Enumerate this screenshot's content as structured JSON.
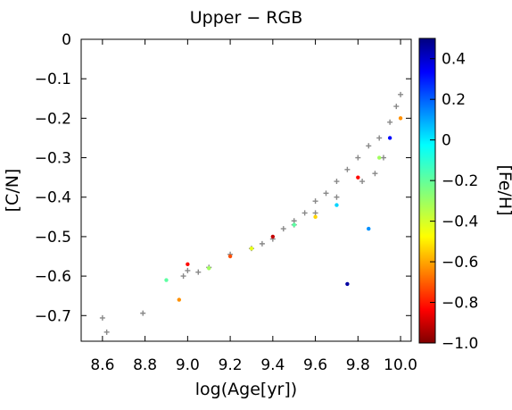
{
  "chart_data": {
    "type": "scatter",
    "title": "Upper − RGB",
    "xlabel": "log(Age[yr])",
    "ylabel": "[C/N]",
    "xlim": [
      8.5,
      10.05
    ],
    "ylim": [
      -0.765,
      0.0
    ],
    "xticks": [
      "8.6",
      "8.8",
      "9.0",
      "9.2",
      "9.4",
      "9.6",
      "9.8",
      "10.0"
    ],
    "yticks": [
      "0",
      "−0.1",
      "−0.2",
      "−0.3",
      "−0.4",
      "−0.5",
      "−0.6",
      "−0.7"
    ],
    "grid": false,
    "colorbar": {
      "label": "[Fe/H]",
      "range": [
        -1.0,
        0.5
      ],
      "ticks": [
        "0.4",
        "0.2",
        "0",
        "−0.2",
        "−0.4",
        "−0.6",
        "−0.8",
        "−1.0"
      ],
      "colormap": "jet"
    },
    "series": [
      {
        "marker": "plus",
        "color": "#888888",
        "points": [
          [
            8.6,
            -0.706
          ],
          [
            8.62,
            -0.742
          ],
          [
            8.79,
            -0.694
          ],
          [
            8.98,
            -0.6
          ],
          [
            9.0,
            -0.586
          ],
          [
            9.05,
            -0.59
          ],
          [
            9.1,
            -0.578
          ],
          [
            9.2,
            -0.545
          ],
          [
            9.3,
            -0.53
          ],
          [
            9.35,
            -0.518
          ],
          [
            9.4,
            -0.506
          ],
          [
            9.45,
            -0.48
          ],
          [
            9.5,
            -0.46
          ],
          [
            9.55,
            -0.44
          ],
          [
            9.6,
            -0.41
          ],
          [
            9.65,
            -0.39
          ],
          [
            9.7,
            -0.36
          ],
          [
            9.75,
            -0.33
          ],
          [
            9.8,
            -0.3
          ],
          [
            9.85,
            -0.27
          ],
          [
            9.9,
            -0.25
          ],
          [
            9.95,
            -0.21
          ],
          [
            9.98,
            -0.17
          ],
          [
            10.0,
            -0.14
          ],
          [
            9.92,
            -0.3
          ],
          [
            9.88,
            -0.34
          ],
          [
            9.82,
            -0.36
          ],
          [
            9.7,
            -0.4
          ],
          [
            9.6,
            -0.44
          ],
          [
            9.5,
            -0.47
          ]
        ]
      },
      {
        "marker": "dot",
        "name_hint": "colored by [Fe/H]",
        "points": [
          [
            8.9,
            -0.61,
            -0.3
          ],
          [
            8.96,
            -0.66,
            0.1
          ],
          [
            9.0,
            -0.57,
            0.3
          ],
          [
            9.1,
            -0.58,
            -0.2
          ],
          [
            9.2,
            -0.55,
            0.2
          ],
          [
            9.3,
            -0.53,
            -0.1
          ],
          [
            9.4,
            -0.5,
            0.4
          ],
          [
            9.5,
            -0.47,
            -0.3
          ],
          [
            9.6,
            -0.45,
            0.0
          ],
          [
            9.7,
            -0.42,
            -0.5
          ],
          [
            9.75,
            -0.62,
            -0.95
          ],
          [
            9.8,
            -0.35,
            0.3
          ],
          [
            9.85,
            -0.48,
            -0.6
          ],
          [
            9.9,
            -0.3,
            -0.2
          ],
          [
            9.95,
            -0.25,
            -0.8
          ],
          [
            10.0,
            -0.2,
            0.1
          ]
        ]
      }
    ]
  }
}
